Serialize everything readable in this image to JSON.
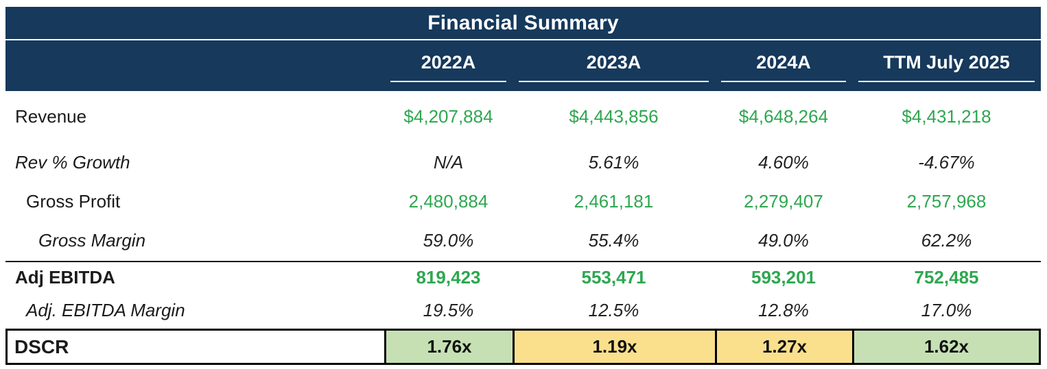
{
  "header": {
    "title": "Financial Summary",
    "columns": [
      "2022A",
      "2023A",
      "2024A",
      "TTM July 2025"
    ]
  },
  "rows": [
    {
      "label": "Revenue",
      "label_style": "normal",
      "value_style": "green",
      "indent": 0,
      "separator_above": false,
      "values": [
        "$4,207,884",
        "$4,443,856",
        "$4,648,264",
        "$4,431,218"
      ]
    },
    {
      "label": "Rev % Growth",
      "label_style": "italic",
      "value_style": "italic",
      "indent": 0,
      "separator_above": false,
      "values": [
        "N/A",
        "5.61%",
        "4.60%",
        "-4.67%"
      ]
    },
    {
      "label": "Gross Profit",
      "label_style": "normal",
      "value_style": "green",
      "indent": 1,
      "separator_above": false,
      "values": [
        "2,480,884",
        "2,461,181",
        "2,279,407",
        "2,757,968"
      ]
    },
    {
      "label": "Gross Margin",
      "label_style": "italic",
      "value_style": "italic",
      "indent": 2,
      "separator_above": false,
      "values": [
        "59.0%",
        "55.4%",
        "49.0%",
        "62.2%"
      ]
    },
    {
      "label": "Adj EBITDA",
      "label_style": "bold",
      "value_style": "bold-green",
      "indent": 0,
      "separator_above": true,
      "values": [
        "819,423",
        "553,471",
        "593,201",
        "752,485"
      ]
    },
    {
      "label": "Adj. EBITDA Margin",
      "label_style": "italic",
      "value_style": "italic",
      "indent": 1,
      "separator_above": false,
      "values": [
        "19.5%",
        "12.5%",
        "12.8%",
        "17.0%"
      ]
    }
  ],
  "dscr": {
    "label": "DSCR",
    "cells": [
      {
        "value": "1.76x",
        "status": "green"
      },
      {
        "value": "1.19x",
        "status": "yellow"
      },
      {
        "value": "1.27x",
        "status": "yellow"
      },
      {
        "value": "1.62x",
        "status": "green"
      }
    ]
  },
  "colors": {
    "header_bg": "#16395C",
    "value_green": "#2EA750",
    "dscr_green": "#C6E0B4",
    "dscr_yellow": "#FAE08D"
  }
}
